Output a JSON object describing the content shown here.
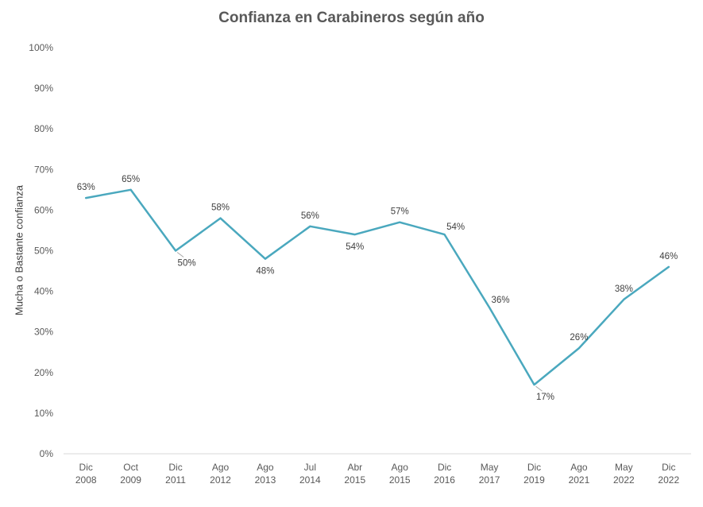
{
  "chart_data": {
    "type": "line",
    "title": "Confianza en Carabineros según año",
    "xlabel": "",
    "ylabel": "Mucha o Bastante confianza",
    "categories": [
      [
        "Dic",
        "2008"
      ],
      [
        "Oct",
        "2009"
      ],
      [
        "Dic",
        "2011"
      ],
      [
        "Ago",
        "2012"
      ],
      [
        "Ago",
        "2013"
      ],
      [
        "Jul",
        "2014"
      ],
      [
        "Abr",
        "2015"
      ],
      [
        "Ago",
        "2015"
      ],
      [
        "Dic",
        "2016"
      ],
      [
        "May",
        "2017"
      ],
      [
        "Dic",
        "2019"
      ],
      [
        "Ago",
        "2021"
      ],
      [
        "May",
        "2022"
      ],
      [
        "Dic",
        "2022"
      ]
    ],
    "values": [
      63,
      65,
      50,
      58,
      48,
      56,
      54,
      57,
      54,
      36,
      17,
      26,
      38,
      46
    ],
    "data_labels": [
      "63%",
      "65%",
      "50%",
      "58%",
      "48%",
      "56%",
      "54%",
      "57%",
      "54%",
      "36%",
      "17%",
      "26%",
      "38%",
      "46%"
    ],
    "ylim": [
      0,
      100
    ],
    "yticks": [
      "0%",
      "10%",
      "20%",
      "30%",
      "40%",
      "50%",
      "60%",
      "70%",
      "80%",
      "90%",
      "100%"
    ],
    "grid": false,
    "line_color": "#4AA8BE"
  }
}
